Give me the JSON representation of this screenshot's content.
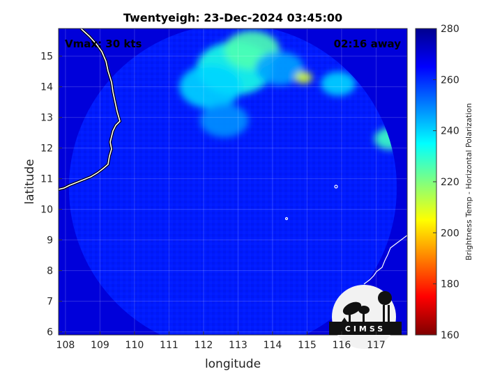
{
  "chart_data": {
    "type": "heatmap",
    "title": "Twentyeigh: 23-Dec-2024 03:45:00",
    "xlabel": "longitude",
    "ylabel": "latitude",
    "xlim": [
      107.8,
      117.9
    ],
    "ylim": [
      5.9,
      15.9
    ],
    "xticks": [
      108,
      109,
      110,
      111,
      112,
      113,
      114,
      115,
      116,
      117
    ],
    "yticks": [
      6,
      7,
      8,
      9,
      10,
      11,
      12,
      13,
      14,
      15
    ],
    "grid": true,
    "annotations": {
      "vmax": "Vmax: 30 kts",
      "away": "02:16 away"
    },
    "colorbar": {
      "label": "Brightness Temp - Horizontal Polarization",
      "min": 160,
      "max": 280,
      "ticks": [
        160,
        180,
        200,
        220,
        240,
        260,
        280
      ],
      "colormap": [
        "#7f0000",
        "#ff0000",
        "#ff8000",
        "#ffff00",
        "#80ff80",
        "#00ffff",
        "#0080ff",
        "#0000ff",
        "#00008f"
      ]
    },
    "swath": {
      "center": [
        112.85,
        10.7
      ],
      "radius_deg_lon": 4.75,
      "background_tb": 262,
      "outside_tb": 270
    },
    "features": [
      {
        "lon": 112.9,
        "lat": 14.6,
        "tb": 232,
        "r": 1.1
      },
      {
        "lon": 112.2,
        "lat": 14.0,
        "tb": 240,
        "r": 0.9
      },
      {
        "lon": 113.4,
        "lat": 15.2,
        "tb": 226,
        "r": 0.8
      },
      {
        "lon": 114.2,
        "lat": 14.6,
        "tb": 246,
        "r": 0.7
      },
      {
        "lon": 114.9,
        "lat": 14.3,
        "tb": 210,
        "r": 0.25
      },
      {
        "lon": 115.9,
        "lat": 14.1,
        "tb": 240,
        "r": 0.5
      },
      {
        "lon": 117.4,
        "lat": 12.3,
        "tb": 228,
        "r": 0.45
      },
      {
        "lon": 112.6,
        "lat": 12.9,
        "tb": 248,
        "r": 0.7
      }
    ],
    "logo": "CIMSS"
  }
}
